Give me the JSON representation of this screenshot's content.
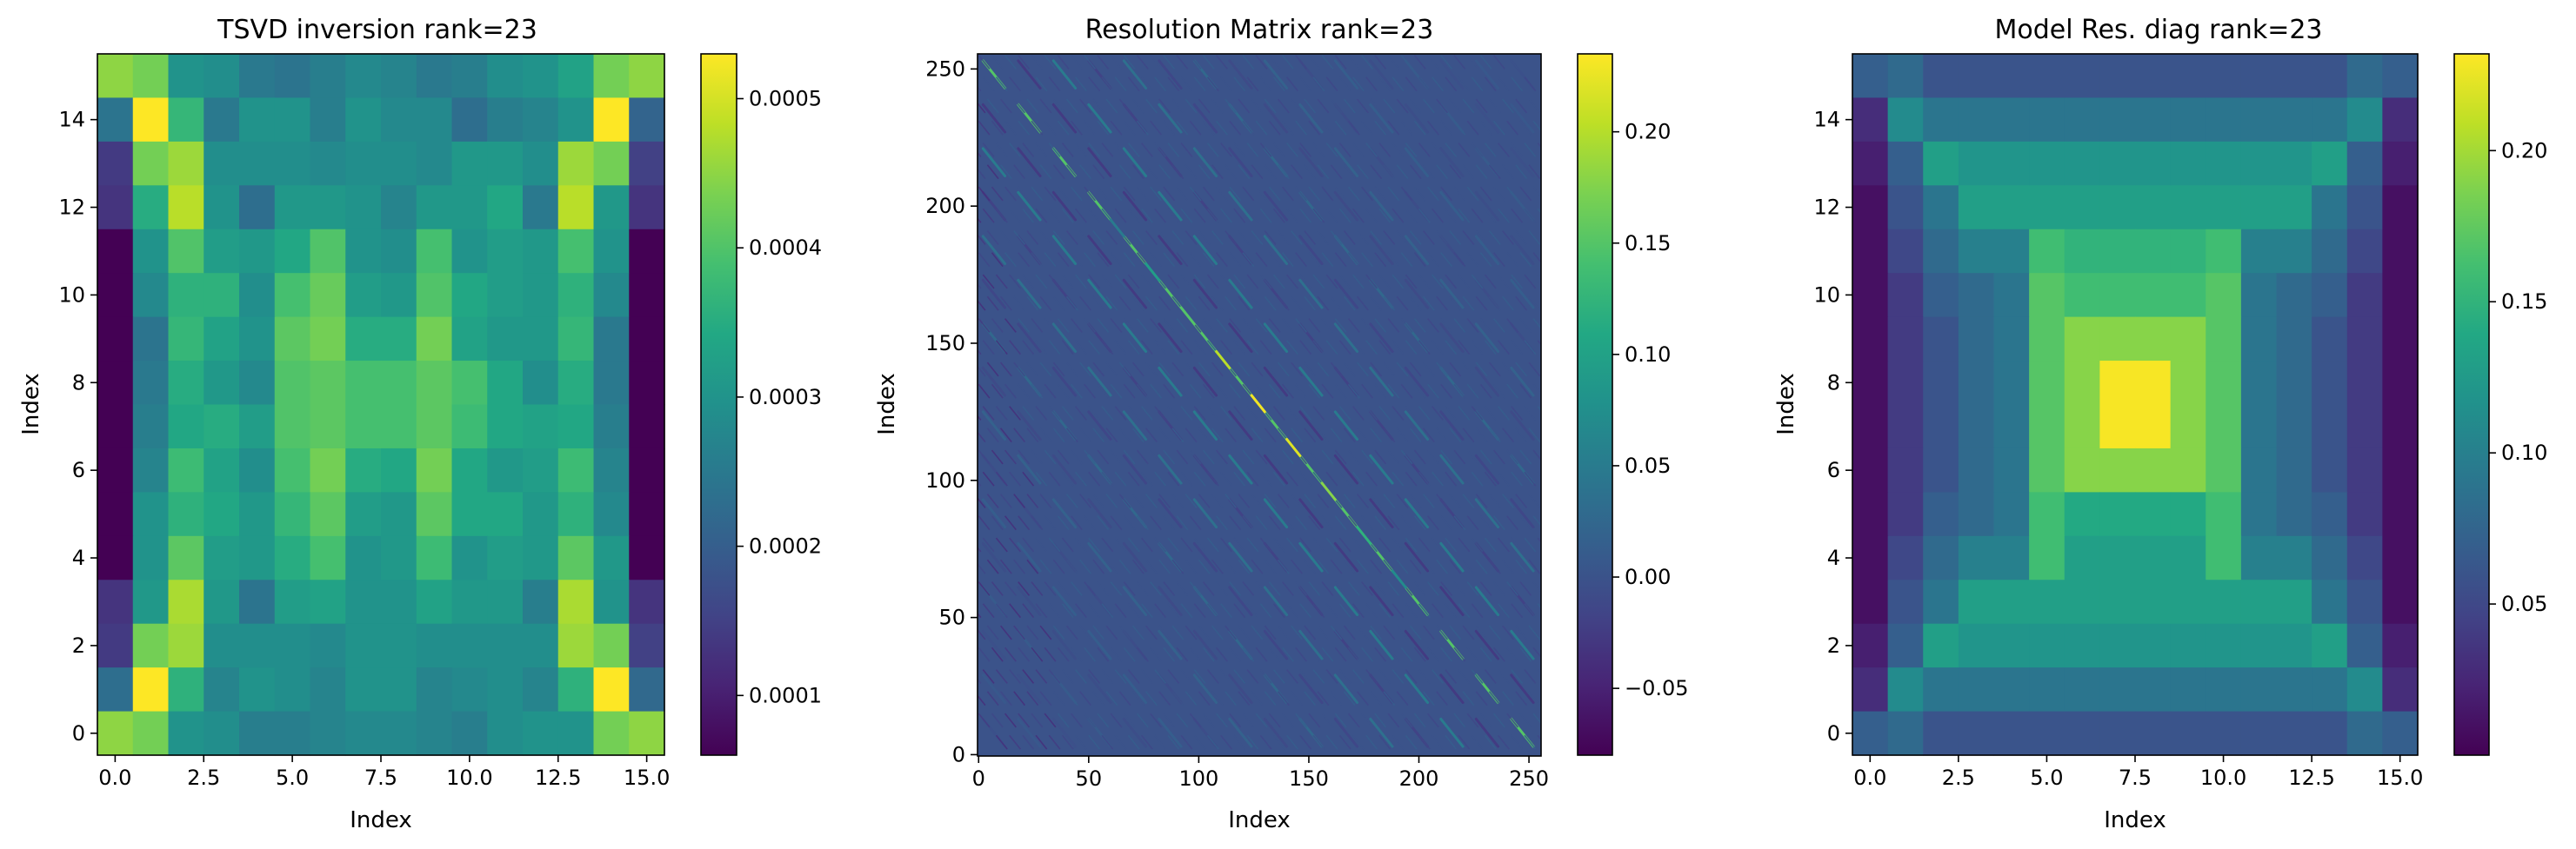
{
  "chart_data": [
    {
      "type": "heatmap",
      "title": "TSVD inversion rank=23",
      "xlabel": "Index",
      "ylabel": "Index",
      "xlim": [
        -0.5,
        15.5
      ],
      "ylim": [
        15.5,
        -0.5
      ],
      "x_ticks": [
        0.0,
        2.5,
        5.0,
        7.5,
        10.0,
        12.5,
        15.0
      ],
      "x_tick_labels": [
        "0.0",
        "2.5",
        "5.0",
        "7.5",
        "10.0",
        "12.5",
        "15.0"
      ],
      "y_ticks": [
        0,
        2,
        4,
        6,
        8,
        10,
        12,
        14
      ],
      "y_tick_labels": [
        "0",
        "2",
        "4",
        "6",
        "8",
        "10",
        "12",
        "14"
      ],
      "colormap": "viridis",
      "vmin": 6e-05,
      "vmax": 0.00053,
      "colorbar_ticks": [
        0.0001,
        0.0002,
        0.0003,
        0.0004,
        0.0005
      ],
      "colorbar_tick_labels": [
        "0.0001",
        "0.0002",
        "0.0003",
        "0.0004",
        "0.0005"
      ],
      "grid": false,
      "values": [
        [
          0.00045,
          0.00043,
          0.0003,
          0.00029,
          0.00025,
          0.00024,
          0.00026,
          0.00028,
          0.00027,
          0.00025,
          0.00026,
          0.00029,
          0.0003,
          0.00033,
          0.00043,
          0.00045
        ],
        [
          0.00024,
          0.00053,
          0.00037,
          0.00025,
          0.0003,
          0.0003,
          0.00026,
          0.0003,
          0.00028,
          0.00028,
          0.00023,
          0.00026,
          0.00027,
          0.0003,
          0.00053,
          0.00021
        ],
        [
          0.00014,
          0.00043,
          0.00046,
          0.00029,
          0.00029,
          0.00029,
          0.00028,
          0.00029,
          0.00029,
          0.00028,
          0.00031,
          0.00031,
          0.00029,
          0.00046,
          0.00043,
          0.00015
        ],
        [
          0.00013,
          0.00035,
          0.00048,
          0.0003,
          0.00023,
          0.00031,
          0.00031,
          0.0003,
          0.00027,
          0.00031,
          0.00031,
          0.00034,
          0.00025,
          0.00048,
          0.00031,
          0.00013
        ],
        [
          6e-05,
          0.0003,
          0.0004,
          0.00032,
          0.00031,
          0.00034,
          0.0004,
          0.0003,
          0.00029,
          0.00039,
          0.0003,
          0.00032,
          0.00031,
          0.00039,
          0.0003,
          6e-05
        ],
        [
          6e-05,
          0.00028,
          0.00036,
          0.00036,
          0.00029,
          0.00039,
          0.00042,
          0.00032,
          0.00031,
          0.0004,
          0.00034,
          0.00032,
          0.00031,
          0.00036,
          0.00028,
          6e-05
        ],
        [
          6e-05,
          0.00024,
          0.00037,
          0.00033,
          0.0003,
          0.00041,
          0.00043,
          0.00035,
          0.00035,
          0.00043,
          0.00033,
          0.00031,
          0.00031,
          0.00037,
          0.00025,
          6e-05
        ],
        [
          6e-05,
          0.00025,
          0.00035,
          0.00031,
          0.00028,
          0.0004,
          0.00041,
          0.00039,
          0.00039,
          0.00041,
          0.00039,
          0.00034,
          0.00029,
          0.00035,
          0.00025,
          6e-05
        ],
        [
          6e-05,
          0.00026,
          0.00034,
          0.00035,
          0.00032,
          0.0004,
          0.00041,
          0.00039,
          0.00039,
          0.00041,
          0.00038,
          0.00034,
          0.00033,
          0.00034,
          0.00026,
          6e-05
        ],
        [
          6e-05,
          0.00027,
          0.00038,
          0.00033,
          0.00029,
          0.00039,
          0.00043,
          0.00035,
          0.00034,
          0.00043,
          0.00034,
          0.00031,
          0.00032,
          0.00038,
          0.00027,
          6e-05
        ],
        [
          6e-05,
          0.0003,
          0.00036,
          0.00034,
          0.00031,
          0.00037,
          0.00041,
          0.00032,
          0.00031,
          0.00041,
          0.00034,
          0.00034,
          0.00031,
          0.00036,
          0.00028,
          6e-05
        ],
        [
          6e-05,
          0.0003,
          0.00041,
          0.00032,
          0.00031,
          0.00035,
          0.00039,
          0.0003,
          0.00031,
          0.00038,
          0.0003,
          0.00032,
          0.00031,
          0.00041,
          0.00031,
          6e-05
        ],
        [
          0.00013,
          0.00031,
          0.00047,
          0.00031,
          0.00024,
          0.00032,
          0.00033,
          0.0003,
          0.0003,
          0.00033,
          0.00031,
          0.00031,
          0.00026,
          0.00047,
          0.0003,
          0.00013
        ],
        [
          0.00014,
          0.00043,
          0.00046,
          0.00029,
          0.00029,
          0.00029,
          0.00028,
          0.0003,
          0.0003,
          0.00029,
          0.00029,
          0.00029,
          0.00029,
          0.00046,
          0.00043,
          0.00015
        ],
        [
          0.00023,
          0.00053,
          0.00036,
          0.00027,
          0.0003,
          0.00029,
          0.00027,
          0.0003,
          0.0003,
          0.00027,
          0.00028,
          0.00029,
          0.00027,
          0.00036,
          0.00053,
          0.00022
        ],
        [
          0.00045,
          0.00043,
          0.0003,
          0.00029,
          0.00026,
          0.00026,
          0.00027,
          0.00028,
          0.00028,
          0.00027,
          0.00026,
          0.00029,
          0.0003,
          0.0003,
          0.00043,
          0.00045
        ]
      ]
    },
    {
      "type": "heatmap",
      "title": "Resolution Matrix rank=23",
      "xlabel": "Index",
      "ylabel": "Index",
      "xlim": [
        -0.5,
        255.5
      ],
      "ylim": [
        255.5,
        -0.5
      ],
      "x_ticks": [
        0,
        50,
        100,
        150,
        200,
        250
      ],
      "x_tick_labels": [
        "0",
        "50",
        "100",
        "150",
        "200",
        "250"
      ],
      "y_ticks": [
        0,
        50,
        100,
        150,
        200,
        250
      ],
      "y_tick_labels": [
        "0",
        "50",
        "100",
        "150",
        "200",
        "250"
      ],
      "colormap": "viridis",
      "vmin": -0.08,
      "vmax": 0.235,
      "colorbar_ticks": [
        -0.05,
        0.0,
        0.05,
        0.1,
        0.15,
        0.2
      ],
      "colorbar_tick_labels": [
        "−0.05",
        "0.00",
        "0.05",
        "0.10",
        "0.15",
        "0.20"
      ],
      "grid": false,
      "matrix_size": [
        256,
        256
      ],
      "diagonal_peak_value": 0.23
    },
    {
      "type": "heatmap",
      "title": "Model Res. diag rank=23",
      "xlabel": "Index",
      "ylabel": "Index",
      "xlim": [
        -0.5,
        15.5
      ],
      "ylim": [
        15.5,
        -0.5
      ],
      "x_ticks": [
        0.0,
        2.5,
        5.0,
        7.5,
        10.0,
        12.5,
        15.0
      ],
      "x_tick_labels": [
        "0.0",
        "2.5",
        "5.0",
        "7.5",
        "10.0",
        "12.5",
        "15.0"
      ],
      "y_ticks": [
        0,
        2,
        4,
        6,
        8,
        10,
        12,
        14
      ],
      "y_tick_labels": [
        "0",
        "2",
        "4",
        "6",
        "8",
        "10",
        "12",
        "14"
      ],
      "colormap": "viridis",
      "vmin": 0.0,
      "vmax": 0.232,
      "colorbar_ticks": [
        0.05,
        0.1,
        0.15,
        0.2
      ],
      "colorbar_tick_labels": [
        "0.05",
        "0.10",
        "0.15",
        "0.20"
      ],
      "grid": false,
      "values": [
        [
          0.07,
          0.08,
          0.06,
          0.06,
          0.06,
          0.06,
          0.06,
          0.06,
          0.06,
          0.06,
          0.06,
          0.06,
          0.06,
          0.06,
          0.08,
          0.07
        ],
        [
          0.03,
          0.11,
          0.09,
          0.09,
          0.09,
          0.09,
          0.09,
          0.09,
          0.09,
          0.09,
          0.09,
          0.09,
          0.09,
          0.09,
          0.11,
          0.03
        ],
        [
          0.02,
          0.07,
          0.13,
          0.12,
          0.12,
          0.12,
          0.12,
          0.12,
          0.12,
          0.12,
          0.12,
          0.12,
          0.12,
          0.13,
          0.07,
          0.02
        ],
        [
          0.01,
          0.06,
          0.09,
          0.13,
          0.13,
          0.13,
          0.13,
          0.13,
          0.13,
          0.13,
          0.13,
          0.13,
          0.13,
          0.09,
          0.06,
          0.01
        ],
        [
          0.01,
          0.05,
          0.08,
          0.1,
          0.1,
          0.16,
          0.15,
          0.15,
          0.15,
          0.15,
          0.16,
          0.1,
          0.1,
          0.08,
          0.05,
          0.01
        ],
        [
          0.01,
          0.04,
          0.07,
          0.08,
          0.09,
          0.17,
          0.16,
          0.16,
          0.16,
          0.16,
          0.17,
          0.09,
          0.08,
          0.07,
          0.04,
          0.01
        ],
        [
          0.01,
          0.04,
          0.06,
          0.08,
          0.09,
          0.17,
          0.19,
          0.19,
          0.19,
          0.19,
          0.17,
          0.09,
          0.08,
          0.06,
          0.04,
          0.01
        ],
        [
          0.01,
          0.04,
          0.06,
          0.08,
          0.09,
          0.17,
          0.19,
          0.23,
          0.23,
          0.19,
          0.17,
          0.09,
          0.08,
          0.06,
          0.04,
          0.01
        ],
        [
          0.01,
          0.04,
          0.06,
          0.08,
          0.09,
          0.17,
          0.19,
          0.23,
          0.23,
          0.19,
          0.17,
          0.09,
          0.08,
          0.06,
          0.04,
          0.01
        ],
        [
          0.01,
          0.04,
          0.06,
          0.08,
          0.09,
          0.17,
          0.19,
          0.19,
          0.19,
          0.19,
          0.17,
          0.09,
          0.08,
          0.06,
          0.04,
          0.01
        ],
        [
          0.01,
          0.04,
          0.07,
          0.08,
          0.09,
          0.16,
          0.14,
          0.14,
          0.14,
          0.14,
          0.16,
          0.09,
          0.08,
          0.07,
          0.04,
          0.01
        ],
        [
          0.01,
          0.05,
          0.08,
          0.1,
          0.1,
          0.16,
          0.13,
          0.13,
          0.13,
          0.13,
          0.16,
          0.1,
          0.1,
          0.08,
          0.05,
          0.01
        ],
        [
          0.01,
          0.06,
          0.09,
          0.13,
          0.13,
          0.13,
          0.13,
          0.13,
          0.13,
          0.13,
          0.13,
          0.13,
          0.13,
          0.09,
          0.06,
          0.01
        ],
        [
          0.02,
          0.07,
          0.13,
          0.12,
          0.12,
          0.12,
          0.12,
          0.12,
          0.12,
          0.12,
          0.12,
          0.12,
          0.12,
          0.13,
          0.07,
          0.02
        ],
        [
          0.03,
          0.11,
          0.09,
          0.09,
          0.09,
          0.09,
          0.09,
          0.09,
          0.09,
          0.09,
          0.09,
          0.09,
          0.09,
          0.09,
          0.11,
          0.03
        ],
        [
          0.07,
          0.08,
          0.06,
          0.06,
          0.06,
          0.06,
          0.06,
          0.06,
          0.06,
          0.06,
          0.06,
          0.06,
          0.06,
          0.06,
          0.08,
          0.07
        ]
      ]
    }
  ]
}
